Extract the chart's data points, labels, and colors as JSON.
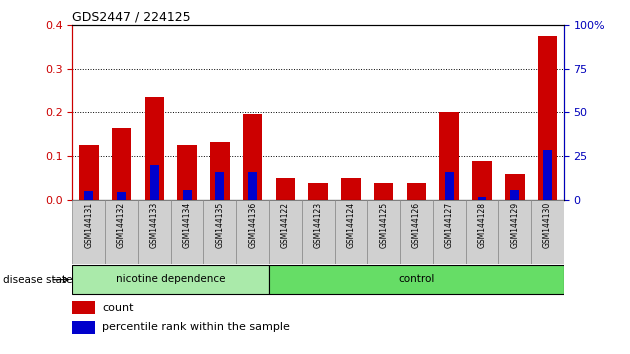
{
  "title": "GDS2447 / 224125",
  "samples": [
    "GSM144131",
    "GSM144132",
    "GSM144133",
    "GSM144134",
    "GSM144135",
    "GSM144136",
    "GSM144122",
    "GSM144123",
    "GSM144124",
    "GSM144125",
    "GSM144126",
    "GSM144127",
    "GSM144128",
    "GSM144129",
    "GSM144130"
  ],
  "count_values": [
    0.125,
    0.165,
    0.235,
    0.125,
    0.132,
    0.197,
    0.05,
    0.038,
    0.05,
    0.038,
    0.038,
    0.2,
    0.09,
    0.06,
    0.375
  ],
  "percentile_values": [
    0.02,
    0.018,
    0.08,
    0.022,
    0.065,
    0.065,
    0.0,
    0.0,
    0.0,
    0.0,
    0.0,
    0.065,
    0.008,
    0.022,
    0.115
  ],
  "nicotine_group": [
    0,
    1,
    2,
    3,
    4,
    5
  ],
  "control_group": [
    6,
    7,
    8,
    9,
    10,
    11,
    12,
    13,
    14
  ],
  "nicotine_label": "nicotine dependence",
  "control_label": "control",
  "disease_state_label": "disease state",
  "bar_color_red": "#cc0000",
  "bar_color_blue": "#0000cc",
  "ylim_left": [
    0,
    0.4
  ],
  "ylim_right": [
    0,
    100
  ],
  "yticks_left": [
    0.0,
    0.1,
    0.2,
    0.3,
    0.4
  ],
  "yticks_right": [
    0,
    25,
    50,
    75,
    100
  ],
  "nicotine_bg": "#aaeaaa",
  "control_bg": "#66dd66",
  "tick_bg": "#d0d0d0",
  "legend_count": "count",
  "legend_pct": "percentile rank within the sample",
  "right_axis_label_color": "#0000bb",
  "left_axis_label_color": "#cc0000",
  "right_ytick_labels": [
    "0",
    "25",
    "50",
    "75",
    "100%"
  ]
}
